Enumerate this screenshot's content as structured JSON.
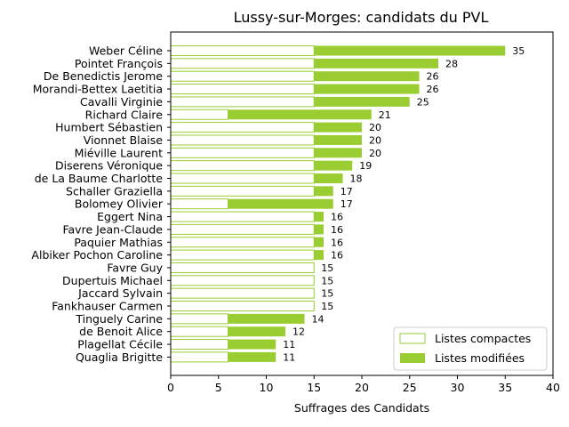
{
  "chart_data": {
    "type": "bar",
    "orientation": "horizontal",
    "stacked": true,
    "title": "Lussy-sur-Morges: candidats du PVL",
    "xlabel": "Suffrages des Candidats",
    "ylabel": "",
    "xlim": [
      0,
      40
    ],
    "xticks": [
      0,
      5,
      10,
      15,
      20,
      25,
      30,
      35,
      40
    ],
    "grid": false,
    "legend_position": "bottom-right",
    "colors": {
      "bar": "#9acd32",
      "compact_fill": "#ffffff",
      "edge": "#9acd32"
    },
    "categories": [
      "Weber Céline",
      "Pointet François",
      "De Benedictis Jerome",
      "Morandi-Bettex Laetitia",
      "Cavalli Virginie",
      "Richard Claire",
      "Humbert Sébastien",
      "Vionnet Blaise",
      "Miéville Laurent",
      "Diserens Véronique",
      "de La Baume Charlotte",
      "Schaller Graziella",
      "Bolomey Olivier",
      "Eggert Nina",
      "Favre Jean-Claude",
      "Paquier Mathias",
      "Albiker Pochon Caroline",
      "Favre Guy",
      "Dupertuis Michael",
      "Jaccard Sylvain",
      "Fankhauser Carmen",
      "Tinguely Carine",
      "de Benoit Alice",
      "Plagellat Cécile",
      "Quaglia Brigitte"
    ],
    "series": [
      {
        "name": "Listes compactes",
        "values": [
          15,
          15,
          15,
          15,
          15,
          6,
          15,
          15,
          15,
          15,
          15,
          15,
          6,
          15,
          15,
          15,
          15,
          15,
          15,
          15,
          15,
          6,
          6,
          6,
          6
        ]
      },
      {
        "name": "Listes modifiées",
        "values": [
          20,
          13,
          11,
          11,
          10,
          15,
          5,
          5,
          5,
          4,
          3,
          2,
          11,
          1,
          1,
          1,
          1,
          0,
          0,
          0,
          0,
          8,
          6,
          5,
          5
        ]
      }
    ],
    "totals": [
      35,
      28,
      26,
      26,
      25,
      21,
      20,
      20,
      20,
      19,
      18,
      17,
      17,
      16,
      16,
      16,
      16,
      15,
      15,
      15,
      15,
      14,
      12,
      11,
      11
    ]
  }
}
